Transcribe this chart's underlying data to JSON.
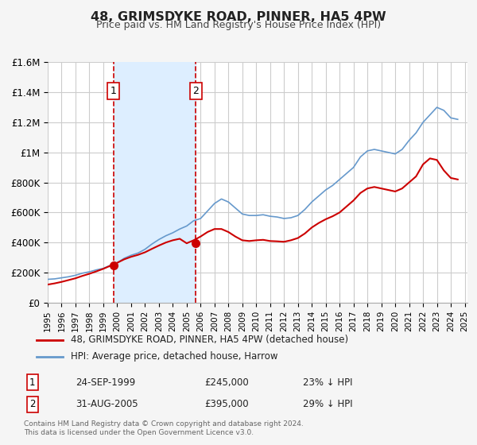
{
  "title": "48, GRIMSDYKE ROAD, PINNER, HA5 4PW",
  "subtitle": "Price paid vs. HM Land Registry's House Price Index (HPI)",
  "xlabel": "",
  "ylabel": "",
  "ylim": [
    0,
    1600000
  ],
  "yticks": [
    0,
    200000,
    400000,
    600000,
    800000,
    1000000,
    1200000,
    1400000,
    1600000
  ],
  "ytick_labels": [
    "£0",
    "£200K",
    "£400K",
    "£600K",
    "£800K",
    "£1M",
    "£1.2M",
    "£1.4M",
    "£1.6M"
  ],
  "background_color": "#f5f5f5",
  "plot_bg_color": "#ffffff",
  "grid_color": "#cccccc",
  "transaction1_date": 1999.73,
  "transaction1_price": 245000,
  "transaction1_label": "1",
  "transaction2_date": 2005.66,
  "transaction2_price": 395000,
  "transaction2_label": "2",
  "highlight_color": "#ddeeff",
  "dashed_line_color": "#cc0000",
  "red_line_color": "#cc0000",
  "blue_line_color": "#6699cc",
  "legend_red_label": "48, GRIMSDYKE ROAD, PINNER, HA5 4PW (detached house)",
  "legend_blue_label": "HPI: Average price, detached house, Harrow",
  "table_row1": [
    "1",
    "24-SEP-1999",
    "£245,000",
    "23% ↓ HPI"
  ],
  "table_row2": [
    "2",
    "31-AUG-2005",
    "£395,000",
    "29% ↓ HPI"
  ],
  "footer": "Contains HM Land Registry data © Crown copyright and database right 2024.\nThis data is licensed under the Open Government Licence v3.0.",
  "hpi_years": [
    1995,
    1995.5,
    1996,
    1996.5,
    1997,
    1997.5,
    1998,
    1998.5,
    1999,
    1999.5,
    2000,
    2000.5,
    2001,
    2001.5,
    2002,
    2002.5,
    2003,
    2003.5,
    2004,
    2004.5,
    2005,
    2005.5,
    2006,
    2006.5,
    2007,
    2007.5,
    2008,
    2008.5,
    2009,
    2009.5,
    2010,
    2010.5,
    2011,
    2011.5,
    2012,
    2012.5,
    2013,
    2013.5,
    2014,
    2014.5,
    2015,
    2015.5,
    2016,
    2016.5,
    2017,
    2017.5,
    2018,
    2018.5,
    2019,
    2019.5,
    2020,
    2020.5,
    2021,
    2021.5,
    2022,
    2022.5,
    2023,
    2023.5,
    2024,
    2024.5
  ],
  "hpi_values": [
    155000,
    158000,
    165000,
    172000,
    182000,
    196000,
    205000,
    218000,
    228000,
    248000,
    265000,
    295000,
    315000,
    330000,
    355000,
    390000,
    420000,
    445000,
    465000,
    490000,
    510000,
    545000,
    560000,
    610000,
    660000,
    690000,
    670000,
    630000,
    590000,
    580000,
    580000,
    585000,
    575000,
    570000,
    560000,
    565000,
    580000,
    620000,
    670000,
    710000,
    750000,
    780000,
    820000,
    860000,
    900000,
    970000,
    1010000,
    1020000,
    1010000,
    1000000,
    990000,
    1020000,
    1080000,
    1130000,
    1200000,
    1250000,
    1300000,
    1280000,
    1230000,
    1220000
  ],
  "property_years": [
    1995,
    1995.5,
    1996,
    1996.5,
    1997,
    1997.5,
    1998,
    1998.5,
    1999,
    1999.5,
    2000,
    2000.5,
    2001,
    2001.5,
    2002,
    2002.5,
    2003,
    2003.5,
    2004,
    2004.5,
    2005,
    2005.5,
    2006,
    2006.5,
    2007,
    2007.5,
    2008,
    2008.5,
    2009,
    2009.5,
    2010,
    2010.5,
    2011,
    2011.5,
    2012,
    2012.5,
    2013,
    2013.5,
    2014,
    2014.5,
    2015,
    2015.5,
    2016,
    2016.5,
    2017,
    2017.5,
    2018,
    2018.5,
    2019,
    2019.5,
    2020,
    2020.5,
    2021,
    2021.5,
    2022,
    2022.5,
    2023,
    2023.5,
    2024,
    2024.5
  ],
  "property_values": [
    120000,
    128000,
    138000,
    150000,
    162000,
    178000,
    192000,
    208000,
    225000,
    245000,
    265000,
    288000,
    305000,
    318000,
    335000,
    358000,
    380000,
    400000,
    415000,
    425000,
    395000,
    415000,
    440000,
    470000,
    490000,
    490000,
    470000,
    440000,
    415000,
    410000,
    415000,
    418000,
    410000,
    408000,
    405000,
    415000,
    430000,
    460000,
    500000,
    530000,
    555000,
    575000,
    600000,
    640000,
    680000,
    730000,
    760000,
    770000,
    760000,
    750000,
    740000,
    760000,
    800000,
    840000,
    920000,
    960000,
    950000,
    880000,
    830000,
    820000
  ]
}
